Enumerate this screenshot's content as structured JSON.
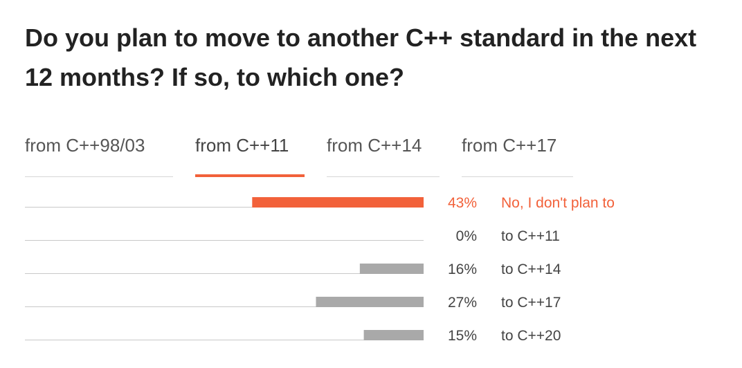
{
  "title": "Do you plan to move to another C++ standard in the next 12 months? If so, to which one?",
  "tabs": [
    {
      "label": "from C++98/03",
      "active": false
    },
    {
      "label": "from C++11",
      "active": true
    },
    {
      "label": "from C++14",
      "active": false
    },
    {
      "label": "from C++17",
      "active": false
    }
  ],
  "colors": {
    "accent": "#f2613a",
    "bar": "#a9a9a9",
    "baseline": "#c8c8c8",
    "text": "#444444"
  },
  "chart_data": {
    "type": "bar",
    "orientation": "horizontal",
    "categories": [
      "No, I don't plan to",
      "to C++11",
      "to C++14",
      "to C++17",
      "to C++20"
    ],
    "values": [
      43,
      0,
      16,
      27,
      15
    ],
    "value_labels": [
      "43%",
      "0%",
      "16%",
      "27%",
      "15%"
    ],
    "highlight_index": 0,
    "unit": "%",
    "xlim": [
      0,
      100
    ],
    "grid": false
  }
}
